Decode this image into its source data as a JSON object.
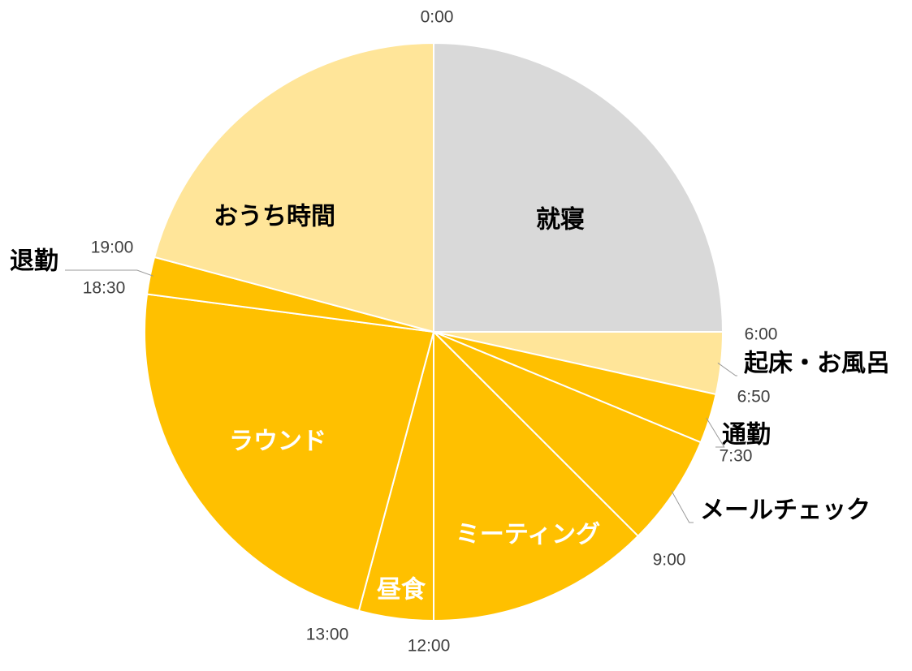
{
  "chart_data": {
    "type": "pie",
    "categories": [
      "就寝",
      "起床・お風呂",
      "通勤",
      "メールチェック",
      "ミーティング",
      "昼食",
      "ラウンド",
      "退勤",
      "おうち時間"
    ],
    "values": [
      360,
      50,
      40,
      90,
      180,
      60,
      330,
      30,
      300
    ],
    "colors": [
      "#d9d9d9",
      "#ffe599",
      "#ffc000",
      "#ffc000",
      "#ffc000",
      "#ffc000",
      "#ffc000",
      "#ffc000",
      "#ffe599"
    ],
    "label_colors": [
      "#000000",
      "#000000",
      "#000000",
      "#000000",
      "#ffffff",
      "#ffffff",
      "#ffffff",
      "#000000",
      "#000000"
    ],
    "start_labels": [
      "0:00",
      "6:00",
      "6:50",
      "7:30",
      "9:00",
      "12:00",
      "13:00",
      "18:30",
      "19:00"
    ]
  }
}
